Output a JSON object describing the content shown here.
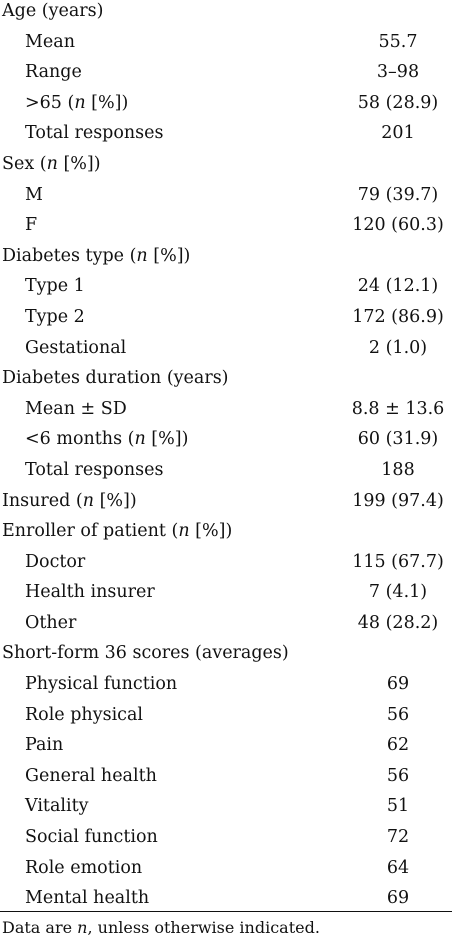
{
  "rows": [
    {
      "label": "Age (years)",
      "value": "",
      "indent": false
    },
    {
      "label": "Mean",
      "value": "55.7",
      "indent": true
    },
    {
      "label": "Range",
      "value": "3–98",
      "indent": true
    },
    {
      "label": ">65 (n [%])",
      "value": "58 (28.9)",
      "indent": true
    },
    {
      "label": "Total responses",
      "value": "201",
      "indent": true
    },
    {
      "label": "Sex (n [%])",
      "value": "",
      "indent": false
    },
    {
      "label": "M",
      "value": "79 (39.7)",
      "indent": true
    },
    {
      "label": "F",
      "value": "120 (60.3)",
      "indent": true
    },
    {
      "label": "Diabetes type (n [%])",
      "value": "",
      "indent": false
    },
    {
      "label": "Type 1",
      "value": "24 (12.1)",
      "indent": true
    },
    {
      "label": "Type 2",
      "value": "172 (86.9)",
      "indent": true
    },
    {
      "label": "Gestational",
      "value": "2 (1.0)",
      "indent": true
    },
    {
      "label": "Diabetes duration (years)",
      "value": "",
      "indent": false
    },
    {
      "label": "Mean ± SD",
      "value": "8.8 ± 13.6",
      "indent": true
    },
    {
      "label": "<6 months (n [%])",
      "value": "60 (31.9)",
      "indent": true
    },
    {
      "label": "Total responses",
      "value": "188",
      "indent": true
    },
    {
      "label": "Insured (n [%])",
      "value": "199 (97.4)",
      "indent": false
    },
    {
      "label": "Enroller of patient (n [%])",
      "value": "",
      "indent": false
    },
    {
      "label": "Doctor",
      "value": "115 (67.7)",
      "indent": true
    },
    {
      "label": "Health insurer",
      "value": "7 (4.1)",
      "indent": true
    },
    {
      "label": "Other",
      "value": "48 (28.2)",
      "indent": true
    },
    {
      "label": "Short-form 36 scores (averages)",
      "value": "",
      "indent": false
    },
    {
      "label": "Physical function",
      "value": "69",
      "indent": true
    },
    {
      "label": "Role physical",
      "value": "56",
      "indent": true
    },
    {
      "label": "Pain",
      "value": "62",
      "indent": true
    },
    {
      "label": "General health",
      "value": "56",
      "indent": true
    },
    {
      "label": "Vitality",
      "value": "51",
      "indent": true
    },
    {
      "label": "Social function",
      "value": "72",
      "indent": true
    },
    {
      "label": "Role emotion",
      "value": "64",
      "indent": true
    },
    {
      "label": "Mental health",
      "value": "69",
      "indent": true
    }
  ],
  "footnote": "Data are n, unless otherwise indicated."
}
